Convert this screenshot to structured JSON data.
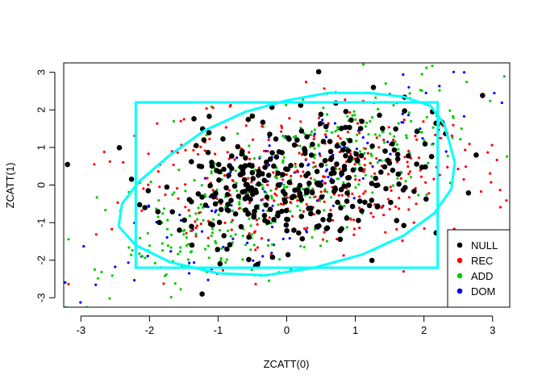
{
  "chart_data": {
    "type": "scatter",
    "title": "",
    "xlabel": "ZCATT(0)",
    "ylabel": "ZCATT(1)",
    "xlim": [
      -3.25,
      3.25
    ],
    "ylim": [
      -3.25,
      3.25
    ],
    "xticks": [
      -3,
      -2,
      -1,
      0,
      1,
      2,
      3
    ],
    "yticks": [
      -3,
      -2,
      -1,
      0,
      1,
      2,
      3
    ],
    "grid": false,
    "legend_position": "bottom-right",
    "series": [
      {
        "name": "NULL",
        "color": "#000000",
        "point_size": "large",
        "count": 320,
        "distribution": {
          "mean": [
            0.1,
            0.05
          ],
          "sd": [
            0.95,
            0.95
          ],
          "rho": 0.25,
          "seed": 11
        }
      },
      {
        "name": "REC",
        "color": "#ff0000",
        "point_size": "small",
        "count": 340,
        "distribution": {
          "mean": [
            0.3,
            0.1
          ],
          "sd": [
            1.35,
            1.05
          ],
          "rho": 0.15,
          "seed": 23
        }
      },
      {
        "name": "ADD",
        "color": "#00cd00",
        "point_size": "small",
        "count": 420,
        "distribution": {
          "mean": [
            0.0,
            0.0
          ],
          "sd": [
            1.4,
            1.45
          ],
          "rho": 0.75,
          "seed": 37
        }
      },
      {
        "name": "DOM",
        "color": "#0000ff",
        "point_size": "small",
        "count": 160,
        "distribution": {
          "mean": [
            0.0,
            0.0
          ],
          "sd": [
            1.5,
            1.6
          ],
          "rho": 0.85,
          "seed": 53
        }
      }
    ],
    "rectangle": {
      "x": [
        -2.2,
        2.2
      ],
      "y": [
        -2.2,
        2.2
      ],
      "color": "#00ffff"
    },
    "ellipse": {
      "color": "#00ffff",
      "points": [
        [
          2.45,
          0.6
        ],
        [
          2.3,
          1.6
        ],
        [
          2.1,
          2.1
        ],
        [
          1.7,
          2.35
        ],
        [
          1.2,
          2.45
        ],
        [
          0.6,
          2.45
        ],
        [
          0.0,
          2.25
        ],
        [
          -0.6,
          1.95
        ],
        [
          -1.2,
          1.45
        ],
        [
          -1.7,
          0.8
        ],
        [
          -2.15,
          0.1
        ],
        [
          -2.4,
          -0.5
        ],
        [
          -2.45,
          -1.1
        ],
        [
          -2.2,
          -1.6
        ],
        [
          -1.7,
          -2.05
        ],
        [
          -1.0,
          -2.35
        ],
        [
          -0.3,
          -2.4
        ],
        [
          0.4,
          -2.2
        ],
        [
          1.1,
          -1.85
        ],
        [
          1.7,
          -1.35
        ],
        [
          2.15,
          -0.75
        ],
        [
          2.4,
          -0.1
        ],
        [
          2.45,
          0.6
        ]
      ]
    }
  }
}
